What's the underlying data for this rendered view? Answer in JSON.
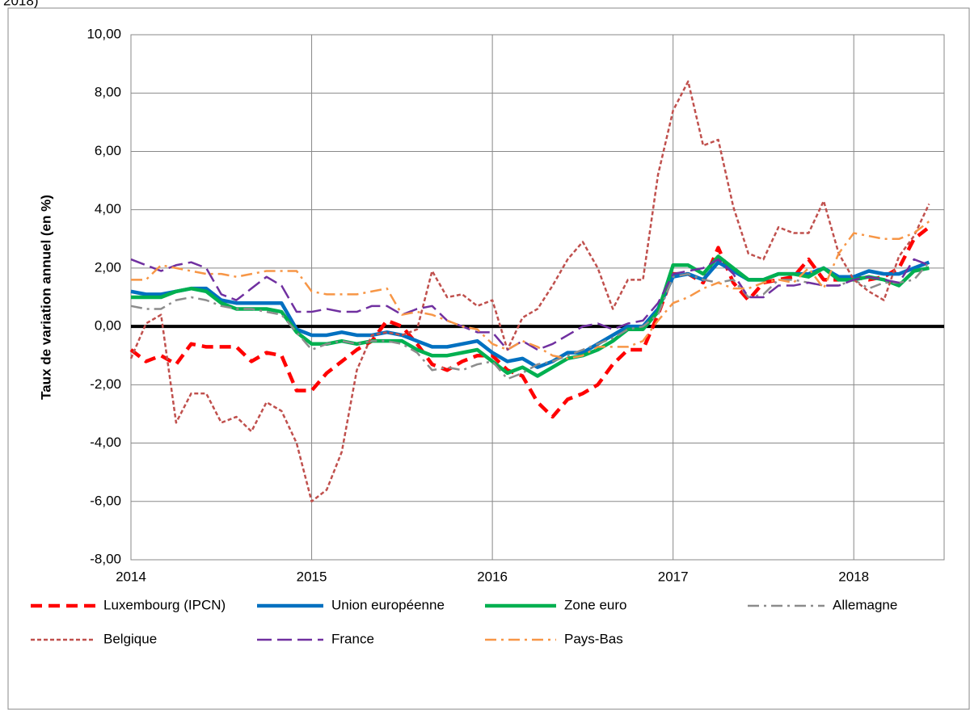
{
  "chart_data": {
    "type": "line",
    "title": "2018)",
    "y_label": "Taux de variation annuel (en %)",
    "categories": [
      "2014",
      null,
      null,
      null,
      null,
      null,
      null,
      null,
      null,
      null,
      null,
      null,
      "2015",
      null,
      null,
      null,
      null,
      null,
      null,
      null,
      null,
      null,
      null,
      null,
      "2016",
      null,
      null,
      null,
      null,
      null,
      null,
      null,
      null,
      null,
      null,
      null,
      "2017",
      null,
      null,
      null,
      null,
      null,
      null,
      null,
      null,
      null,
      null,
      null,
      "2018",
      null,
      null,
      null,
      null,
      null
    ],
    "ylim": [
      -8,
      10
    ],
    "yticks": [
      {
        "value": -8,
        "label": "-8,00"
      },
      {
        "value": -6,
        "label": "-6,00"
      },
      {
        "value": -4,
        "label": "-4,00"
      },
      {
        "value": -2,
        "label": "-2,00"
      },
      {
        "value": 0,
        "label": "0,00"
      },
      {
        "value": 2,
        "label": "2,00"
      },
      {
        "value": 4,
        "label": "4,00"
      },
      {
        "value": 6,
        "label": "6,00"
      },
      {
        "value": 8,
        "label": "8,00"
      },
      {
        "value": 10,
        "label": "10,00"
      }
    ],
    "grid": true,
    "legend": "bottom",
    "series": [
      {
        "name": "Luxembourg (IPCN)",
        "color": "#ff0000",
        "dash": "thick-dash",
        "values": [
          -0.8,
          -1.2,
          -1.0,
          -1.3,
          -0.6,
          -0.7,
          -0.7,
          -0.7,
          -1.2,
          -0.9,
          -1.0,
          -2.2,
          -2.2,
          -1.6,
          -1.2,
          -0.8,
          -0.5,
          0.2,
          0.0,
          -0.6,
          -1.3,
          -1.5,
          -1.2,
          -1.0,
          -1.0,
          -1.5,
          -1.7,
          -2.6,
          -3.1,
          -2.5,
          -2.3,
          -2.0,
          -1.3,
          -0.8,
          -0.8,
          0.4,
          1.8,
          1.8,
          1.5,
          2.7,
          1.5,
          0.9,
          1.5,
          1.6,
          1.7,
          2.3,
          1.6,
          1.6,
          1.7,
          1.6,
          1.7,
          2.0,
          3.0,
          3.4
        ]
      },
      {
        "name": "Union européenne",
        "color": "#0070c0",
        "dash": "thick-solid",
        "values": [
          1.2,
          1.1,
          1.1,
          1.2,
          1.3,
          1.3,
          0.9,
          0.8,
          0.8,
          0.8,
          0.8,
          -0.1,
          -0.3,
          -0.3,
          -0.2,
          -0.3,
          -0.3,
          -0.2,
          -0.3,
          -0.5,
          -0.7,
          -0.7,
          -0.6,
          -0.5,
          -0.9,
          -1.2,
          -1.1,
          -1.4,
          -1.2,
          -0.9,
          -0.9,
          -0.6,
          -0.3,
          0.0,
          0.0,
          0.6,
          1.7,
          1.8,
          1.6,
          2.2,
          1.9,
          1.6,
          1.6,
          1.8,
          1.8,
          1.8,
          2.0,
          1.7,
          1.7,
          1.9,
          1.8,
          1.8,
          2.0,
          2.2
        ]
      },
      {
        "name": "Zone euro",
        "color": "#00b050",
        "dash": "thick-solid",
        "values": [
          1.0,
          1.0,
          1.0,
          1.2,
          1.3,
          1.2,
          0.8,
          0.6,
          0.6,
          0.6,
          0.5,
          -0.2,
          -0.6,
          -0.6,
          -0.5,
          -0.6,
          -0.5,
          -0.5,
          -0.5,
          -0.8,
          -1.0,
          -1.0,
          -0.9,
          -0.8,
          -1.2,
          -1.6,
          -1.4,
          -1.7,
          -1.4,
          -1.1,
          -1.0,
          -0.8,
          -0.5,
          -0.1,
          -0.1,
          0.5,
          2.1,
          2.1,
          1.8,
          2.4,
          2.0,
          1.6,
          1.6,
          1.8,
          1.8,
          1.7,
          2.0,
          1.6,
          1.6,
          1.7,
          1.6,
          1.4,
          1.9,
          2.0
        ]
      },
      {
        "name": "Allemagne",
        "color": "#8c8c8c",
        "dash": "dash-dot",
        "values": [
          0.7,
          0.6,
          0.6,
          0.9,
          1.0,
          0.9,
          0.7,
          0.6,
          0.6,
          0.5,
          0.4,
          -0.2,
          -0.8,
          -0.6,
          -0.5,
          -0.6,
          -0.5,
          -0.5,
          -0.6,
          -0.9,
          -1.5,
          -1.4,
          -1.5,
          -1.3,
          -1.2,
          -1.8,
          -1.6,
          -1.3,
          -1.2,
          -1.0,
          -0.8,
          -0.6,
          -0.4,
          -0.1,
          0.0,
          0.4,
          1.7,
          1.8,
          1.6,
          1.5,
          1.6,
          1.0,
          1.1,
          1.6,
          1.6,
          1.5,
          1.4,
          1.4,
          1.6,
          1.3,
          1.5,
          1.5,
          1.6,
          2.2
        ]
      },
      {
        "name": "Belgique",
        "color": "#c0504d",
        "dash": "short-dash",
        "values": [
          -1.1,
          0.1,
          0.4,
          -3.3,
          -2.3,
          -2.3,
          -3.3,
          -3.1,
          -3.6,
          -2.6,
          -2.9,
          -4.0,
          -6.0,
          -5.6,
          -4.3,
          -1.5,
          -0.3,
          -0.2,
          -0.3,
          -0.1,
          1.9,
          1.0,
          1.1,
          0.7,
          0.9,
          -0.8,
          0.3,
          0.6,
          1.4,
          2.3,
          2.9,
          2.0,
          0.6,
          1.6,
          1.6,
          5.2,
          7.4,
          8.4,
          6.2,
          6.4,
          4.1,
          2.5,
          2.3,
          3.4,
          3.2,
          3.2,
          4.3,
          2.5,
          1.6,
          1.2,
          0.9,
          2.4,
          3.1,
          4.2
        ]
      },
      {
        "name": "France",
        "color": "#7030a0",
        "dash": "long-dash",
        "values": [
          2.3,
          2.1,
          1.9,
          2.1,
          2.2,
          2.0,
          1.1,
          0.9,
          1.3,
          1.7,
          1.4,
          0.5,
          0.5,
          0.6,
          0.5,
          0.5,
          0.7,
          0.7,
          0.4,
          0.6,
          0.7,
          0.2,
          0.0,
          -0.2,
          -0.2,
          -0.8,
          -0.5,
          -0.8,
          -0.6,
          -0.3,
          0.0,
          0.1,
          -0.1,
          0.1,
          0.2,
          0.8,
          1.8,
          1.9,
          2.0,
          2.3,
          1.8,
          1.0,
          1.0,
          1.4,
          1.4,
          1.5,
          1.4,
          1.4,
          1.6,
          1.7,
          1.6,
          1.5,
          2.3,
          2.1
        ]
      },
      {
        "name": "Pays-Bas",
        "color": "#f79646",
        "dash": "dash-dot",
        "values": [
          1.6,
          1.6,
          2.1,
          2.0,
          1.9,
          1.8,
          1.8,
          1.7,
          1.8,
          1.9,
          1.9,
          1.9,
          1.2,
          1.1,
          1.1,
          1.1,
          1.2,
          1.3,
          0.4,
          0.5,
          0.4,
          0.2,
          0.0,
          -0.1,
          -0.6,
          -0.8,
          -0.5,
          -0.7,
          -1.0,
          -1.1,
          -1.0,
          -0.7,
          -0.7,
          -0.7,
          -0.5,
          0.2,
          0.8,
          1.0,
          1.3,
          1.5,
          1.3,
          1.3,
          1.5,
          1.6,
          1.5,
          2.0,
          1.3,
          2.5,
          3.2,
          3.1,
          3.0,
          3.0,
          3.2,
          3.6
        ]
      }
    ]
  }
}
